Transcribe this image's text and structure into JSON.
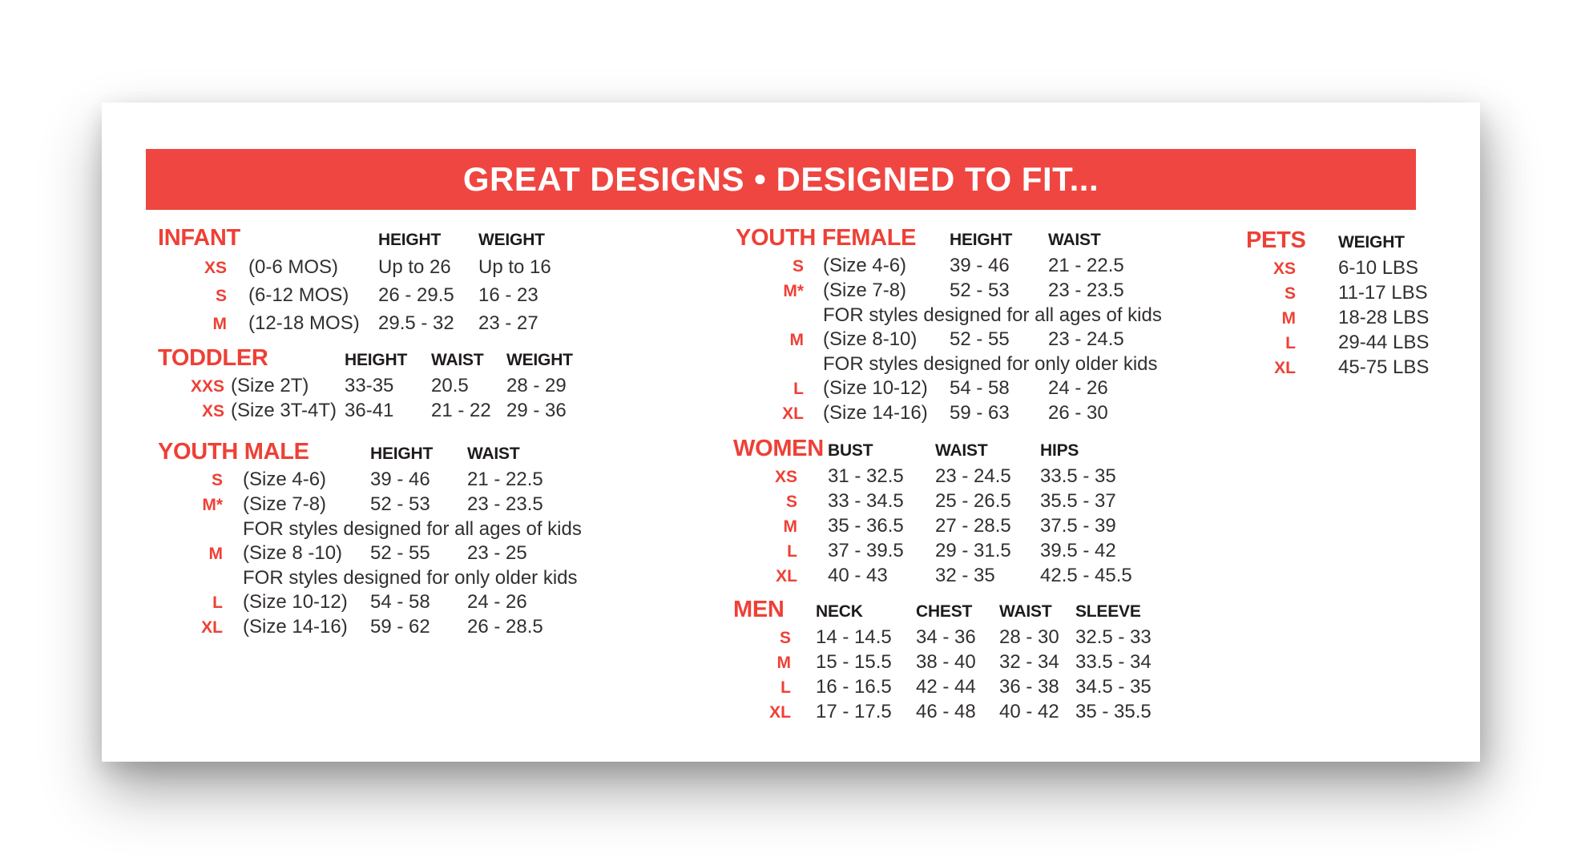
{
  "banner": {
    "title": "GREAT DESIGNS • DESIGNED TO FIT..."
  },
  "colors": {
    "banner_bg": "#EF4641",
    "accent": "#EE4036",
    "heading_text": "#1F1B1C",
    "body_text": "#332F30",
    "card_bg": "#FFFFFF"
  },
  "sections": [
    {
      "id": "infant",
      "title": "INFANT",
      "columns": [
        "HEIGHT",
        "WEIGHT"
      ],
      "rows": [
        {
          "size": "XS",
          "desc": "(0-6 MOS)",
          "values": [
            "Up to 26",
            "Up to 16"
          ]
        },
        {
          "size": "S",
          "desc": "(6-12 MOS)",
          "values": [
            "26 - 29.5",
            "16 - 23"
          ]
        },
        {
          "size": "M",
          "desc": "(12-18 MOS)",
          "values": [
            "29.5 - 32",
            "23 - 27"
          ]
        }
      ]
    },
    {
      "id": "toddler",
      "title": "TODDLER",
      "columns": [
        "HEIGHT",
        "WAIST",
        "WEIGHT"
      ],
      "rows": [
        {
          "size": "XXS",
          "desc": "(Size 2T)",
          "values": [
            "33-35",
            "20.5",
            "28 - 29"
          ]
        },
        {
          "size": "XS",
          "desc": "(Size 3T-4T)",
          "values": [
            "36-41",
            "21 - 22",
            "29 - 36"
          ]
        }
      ]
    },
    {
      "id": "youth-male",
      "title": "YOUTH MALE",
      "columns": [
        "HEIGHT",
        "WAIST"
      ],
      "rows": [
        {
          "size": "S",
          "desc": "(Size 4-6)",
          "values": [
            "39 - 46",
            "21 - 22.5"
          ]
        },
        {
          "size": "M*",
          "desc": "(Size 7-8)",
          "values": [
            "52 - 53",
            "23 - 23.5"
          ]
        },
        {
          "note": "FOR styles designed for all ages of kids"
        },
        {
          "size": "M",
          "desc": "(Size 8 -10)",
          "values": [
            "52 - 55",
            "23 - 25"
          ]
        },
        {
          "note": "FOR styles designed for only older kids"
        },
        {
          "size": "L",
          "desc": "(Size 10-12)",
          "values": [
            "54 - 58",
            "24 - 26"
          ]
        },
        {
          "size": "XL",
          "desc": "(Size 14-16)",
          "values": [
            "59 - 62",
            "26 - 28.5"
          ]
        }
      ]
    },
    {
      "id": "youth-female",
      "title": "YOUTH FEMALE",
      "columns": [
        "HEIGHT",
        "WAIST"
      ],
      "rows": [
        {
          "size": "S",
          "desc": "(Size 4-6)",
          "values": [
            "39 - 46",
            "21 - 22.5"
          ]
        },
        {
          "size": "M*",
          "desc": "(Size 7-8)",
          "values": [
            "52 - 53",
            "23 - 23.5"
          ]
        },
        {
          "note": "FOR styles designed for all ages of kids"
        },
        {
          "size": "M",
          "desc": "(Size 8-10)",
          "values": [
            "52 - 55",
            "23 - 24.5"
          ]
        },
        {
          "note": "FOR styles designed for only older kids"
        },
        {
          "size": "L",
          "desc": "(Size 10-12)",
          "values": [
            "54 - 58",
            "24 - 26"
          ]
        },
        {
          "size": "XL",
          "desc": "(Size 14-16)",
          "values": [
            "59 - 63",
            "26 - 30"
          ]
        }
      ]
    },
    {
      "id": "women",
      "title": "WOMEN",
      "columns": [
        "BUST",
        "WAIST",
        "HIPS"
      ],
      "rows": [
        {
          "size": "XS",
          "values": [
            "31 - 32.5",
            "23 - 24.5",
            "33.5 - 35"
          ]
        },
        {
          "size": "S",
          "values": [
            "33 - 34.5",
            "25 - 26.5",
            "35.5 - 37"
          ]
        },
        {
          "size": "M",
          "values": [
            "35 - 36.5",
            "27 - 28.5",
            "37.5 - 39"
          ]
        },
        {
          "size": "L",
          "values": [
            "37 - 39.5",
            "29 - 31.5",
            "39.5 - 42"
          ]
        },
        {
          "size": "XL",
          "values": [
            "40 - 43",
            "32 - 35",
            "42.5 - 45.5"
          ]
        }
      ]
    },
    {
      "id": "men",
      "title": "MEN",
      "columns": [
        "NECK",
        "CHEST",
        "WAIST",
        "SLEEVE"
      ],
      "rows": [
        {
          "size": "S",
          "values": [
            "14 - 14.5",
            "34 - 36",
            "28 - 30",
            "32.5 - 33"
          ]
        },
        {
          "size": "M",
          "values": [
            "15 - 15.5",
            "38 - 40",
            "32 - 34",
            "33.5 - 34"
          ]
        },
        {
          "size": "L",
          "values": [
            "16 - 16.5",
            "42 - 44",
            "36 - 38",
            "34.5 - 35"
          ]
        },
        {
          "size": "XL",
          "values": [
            "17 - 17.5",
            "46 - 48",
            "40 - 42",
            "35 - 35.5"
          ]
        }
      ]
    },
    {
      "id": "pets",
      "title": "PETS",
      "columns": [
        "WEIGHT"
      ],
      "rows": [
        {
          "size": "XS",
          "values": [
            "6-10 LBS"
          ]
        },
        {
          "size": "S",
          "values": [
            "11-17 LBS"
          ]
        },
        {
          "size": "M",
          "values": [
            "18-28 LBS"
          ]
        },
        {
          "size": "L",
          "values": [
            "29-44 LBS"
          ]
        },
        {
          "size": "XL",
          "values": [
            "45-75 LBS"
          ]
        }
      ]
    }
  ]
}
